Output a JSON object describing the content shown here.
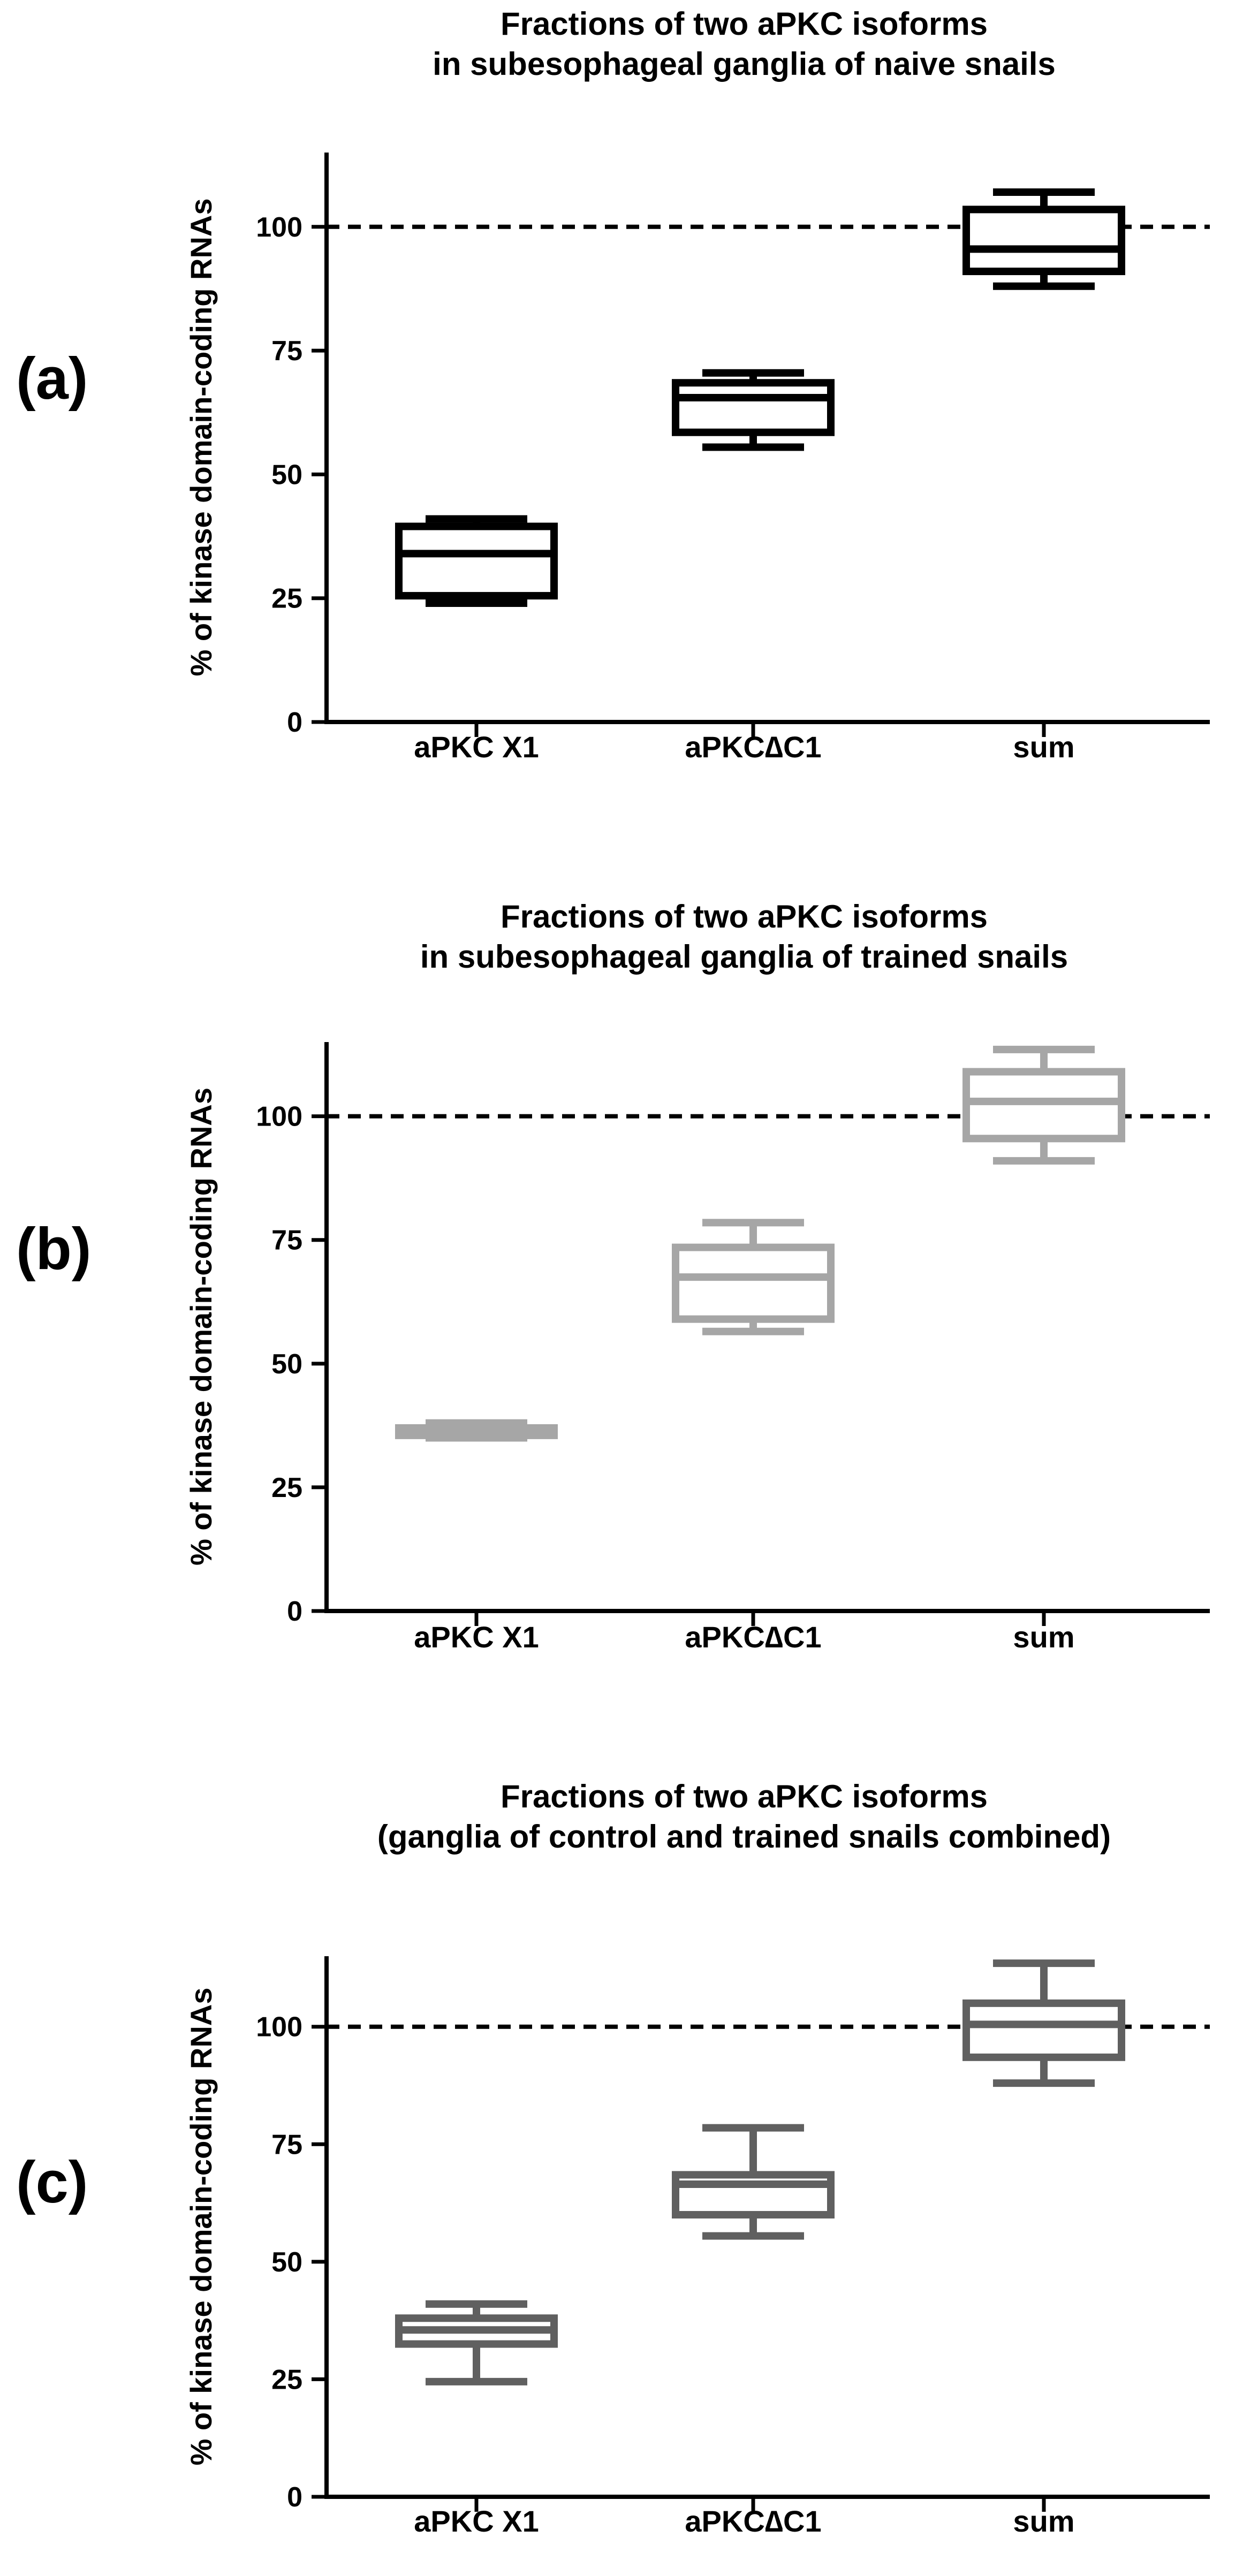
{
  "chart_data": [
    {
      "type": "box",
      "panel_label": "(a)",
      "title_lines": [
        "Fractions of two aPKC isoforms",
        "in subesophageal ganglia of naive snails"
      ],
      "ylabel": "% of kinase domain-coding RNAs",
      "ylim": [
        0,
        115
      ],
      "yticks": [
        0,
        25,
        50,
        75,
        100
      ],
      "categories": [
        "aPKC X1",
        "aPKC∆C1",
        "sum"
      ],
      "reference_line": 100,
      "color": "#000000",
      "boxes": [
        {
          "min": 24,
          "q1": 25.5,
          "median": 34,
          "q3": 39.5,
          "max": 41
        },
        {
          "min": 55.5,
          "q1": 58.5,
          "median": 65.5,
          "q3": 68.5,
          "max": 70.5
        },
        {
          "min": 88,
          "q1": 91,
          "median": 95.5,
          "q3": 103.5,
          "max": 107
        }
      ]
    },
    {
      "type": "box",
      "panel_label": "(b)",
      "title_lines": [
        "Fractions of two aPKC isoforms",
        "in subesophageal ganglia of trained snails"
      ],
      "ylabel": "% of kinase domain-coding RNAs",
      "ylim": [
        0,
        115
      ],
      "yticks": [
        0,
        25,
        50,
        75,
        100
      ],
      "categories": [
        "aPKC X1",
        "aPKC∆C1",
        "sum"
      ],
      "reference_line": 100,
      "color": "#a6a6a6",
      "boxes": [
        {
          "min": 35,
          "q1": 35.5,
          "median": 36,
          "q3": 37,
          "max": 38
        },
        {
          "min": 56.5,
          "q1": 59,
          "median": 67.5,
          "q3": 73.5,
          "max": 78.5
        },
        {
          "min": 91,
          "q1": 95.5,
          "median": 103,
          "q3": 109,
          "max": 113.5
        }
      ]
    },
    {
      "type": "box",
      "panel_label": "(c)",
      "title_lines": [
        "Fractions of two aPKC isoforms",
        "(ganglia of control and trained snails combined)"
      ],
      "ylabel": "% of kinase domain-coding RNAs",
      "ylim": [
        0,
        115
      ],
      "yticks": [
        0,
        25,
        50,
        75,
        100
      ],
      "categories": [
        "aPKC X1",
        "aPKC∆C1",
        "sum"
      ],
      "reference_line": 100,
      "color": "#606060",
      "boxes": [
        {
          "min": 24.5,
          "q1": 32.5,
          "median": 35.5,
          "q3": 38,
          "max": 41
        },
        {
          "min": 55.5,
          "q1": 60,
          "median": 66.5,
          "q3": 68.5,
          "max": 78.5
        },
        {
          "min": 88,
          "q1": 93.5,
          "median": 100.5,
          "q3": 105,
          "max": 113.5
        }
      ]
    }
  ]
}
